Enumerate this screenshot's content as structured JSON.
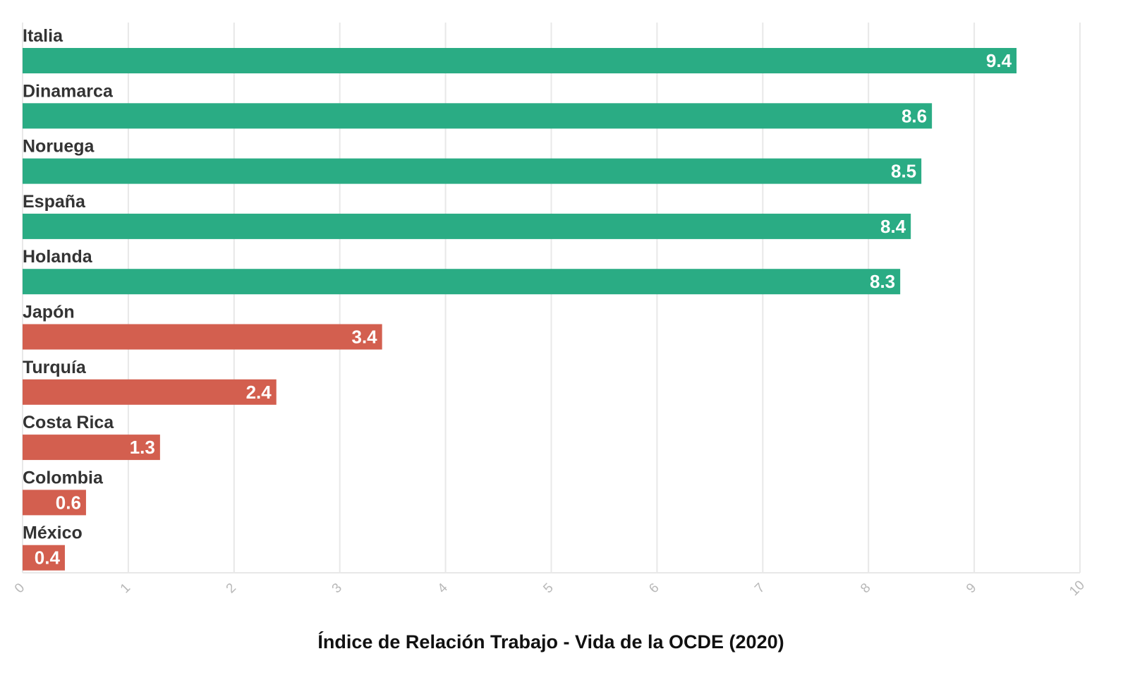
{
  "chart_data": {
    "type": "bar",
    "orientation": "horizontal",
    "categories": [
      "Italia",
      "Dinamarca",
      "Noruega",
      "España",
      "Holanda",
      "Japón",
      "Turquía",
      "Costa Rica",
      "Colombia",
      "México"
    ],
    "values": [
      9.4,
      8.6,
      8.5,
      8.4,
      8.3,
      3.4,
      2.4,
      1.3,
      0.6,
      0.4
    ],
    "value_labels": [
      "9.4",
      "8.6",
      "8.5",
      "8.4",
      "8.3",
      "3.4",
      "2.4",
      "1.3",
      "0.6",
      "0.4"
    ],
    "bar_colors": [
      "#2aac84",
      "#2aac84",
      "#2aac84",
      "#2aac84",
      "#2aac84",
      "#d35f4f",
      "#d35f4f",
      "#d35f4f",
      "#d35f4f",
      "#d35f4f"
    ],
    "xlabel": "Índice de Relación Trabajo - Vida de la OCDE (2020)",
    "xlim": [
      0,
      10
    ],
    "xticks": [
      0,
      1,
      2,
      3,
      4,
      5,
      6,
      7,
      8,
      9,
      10
    ],
    "xtick_labels": [
      "0",
      "1",
      "2",
      "3",
      "4",
      "5",
      "6",
      "7",
      "8",
      "9",
      "10"
    ],
    "grid": true,
    "legend": "none"
  }
}
